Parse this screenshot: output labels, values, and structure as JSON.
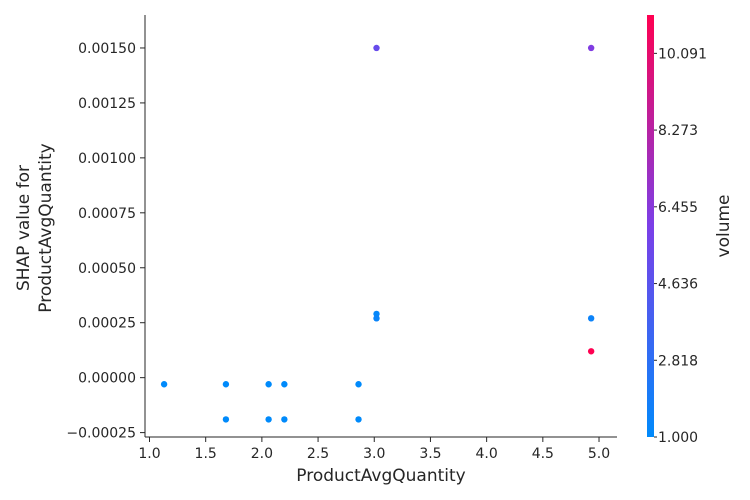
{
  "chart_data": {
    "type": "scatter",
    "xlabel": "ProductAvgQuantity",
    "ylabel_lines": [
      "SHAP value for",
      "ProductAvgQuantity"
    ],
    "xlim": [
      0.96,
      5.16
    ],
    "ylim": [
      -0.00027,
      0.00165
    ],
    "x_ticks": [
      1.0,
      1.5,
      2.0,
      2.5,
      3.0,
      3.5,
      4.0,
      4.5,
      5.0
    ],
    "x_tick_labels": [
      "1.0",
      "1.5",
      "2.0",
      "2.5",
      "3.0",
      "3.5",
      "4.0",
      "4.5",
      "5.0"
    ],
    "y_ticks": [
      -0.00025,
      0.0,
      0.00025,
      0.0005,
      0.00075,
      0.001,
      0.00125,
      0.0015
    ],
    "y_tick_labels": [
      "−0.00025",
      "0.00000",
      "0.00025",
      "0.00050",
      "0.00075",
      "0.00100",
      "0.00125",
      "0.00150"
    ],
    "colorbar": {
      "label": "volume",
      "range": [
        1.0,
        11.0
      ],
      "ticks": [
        1.0,
        2.818,
        4.636,
        6.455,
        8.273,
        10.091
      ],
      "tick_labels": [
        "1.000",
        "2.818",
        "4.636",
        "6.455",
        "8.273",
        "10.091"
      ],
      "colormap": [
        "#008afb",
        "#7b3fe8",
        "#ff0051"
      ]
    },
    "points": [
      {
        "x": 1.13,
        "y": -3e-05,
        "c": 1.0
      },
      {
        "x": 1.68,
        "y": -3e-05,
        "c": 1.0
      },
      {
        "x": 1.68,
        "y": -0.00019,
        "c": 1.0
      },
      {
        "x": 2.06,
        "y": -3e-05,
        "c": 1.0
      },
      {
        "x": 2.06,
        "y": -0.00019,
        "c": 1.0
      },
      {
        "x": 2.2,
        "y": -3e-05,
        "c": 1.0
      },
      {
        "x": 2.2,
        "y": -0.00019,
        "c": 1.0
      },
      {
        "x": 2.86,
        "y": -3e-05,
        "c": 1.0
      },
      {
        "x": 2.86,
        "y": -0.00019,
        "c": 1.0
      },
      {
        "x": 3.02,
        "y": 0.0015,
        "c": 5.2
      },
      {
        "x": 3.02,
        "y": 0.00029,
        "c": 1.2
      },
      {
        "x": 3.02,
        "y": 0.00027,
        "c": 1.4
      },
      {
        "x": 4.93,
        "y": 0.0015,
        "c": 6.2
      },
      {
        "x": 4.93,
        "y": 0.00027,
        "c": 1.5
      },
      {
        "x": 4.93,
        "y": 0.00012,
        "c": 11.0
      }
    ]
  }
}
